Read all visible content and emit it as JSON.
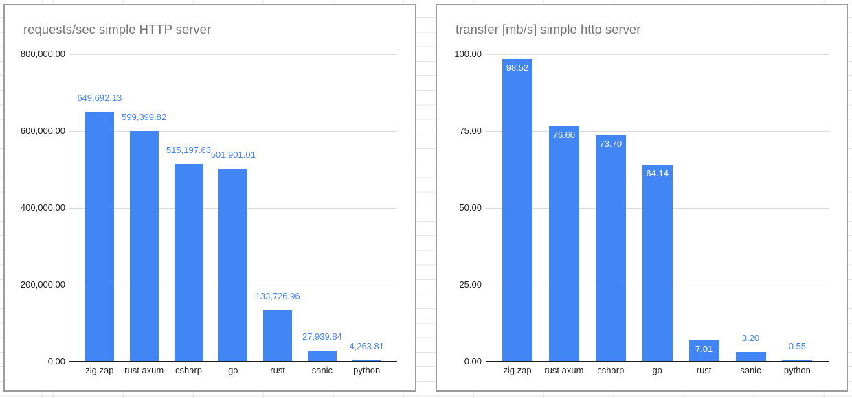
{
  "colors": {
    "bar": "#4285f4",
    "value_label_above": "#4285f4",
    "value_label_inside": "#ffffff",
    "chart_title": "#757575",
    "axis_label": "#1f1f1f",
    "chart_gridline": "#dadada",
    "axis_line": "#1c1c1c",
    "panel_border": "#9d9d9d",
    "sheet_gridline": "#e4e4e4"
  },
  "chart_data": [
    {
      "type": "bar",
      "title": "requests/sec simple HTTP server",
      "categories": [
        "zig zap",
        "rust axum",
        "csharp",
        "go",
        "rust",
        "sanic",
        "python"
      ],
      "values": [
        649692.13,
        599399.82,
        515197.63,
        501901.01,
        133726.96,
        27939.84,
        4263.81
      ],
      "value_labels": [
        "649,692.13",
        "599,399.82",
        "515,197.63",
        "501,901.01",
        "133,726.96",
        "27,939.84",
        "4,263.81"
      ],
      "label_placement": [
        "above",
        "above",
        "above",
        "above",
        "above",
        "above",
        "above"
      ],
      "y_tick_labels": [
        "800,000.00",
        "600,000.00",
        "400,000.00",
        "200,000.00",
        "0.00"
      ],
      "ylim": [
        0,
        800000
      ],
      "xlabel": "",
      "ylabel": "",
      "legend": "none",
      "grid": true
    },
    {
      "type": "bar",
      "title": "transfer [mb/s] simple http server",
      "categories": [
        "zig zap",
        "rust axum",
        "csharp",
        "go",
        "rust",
        "sanic",
        "python"
      ],
      "values": [
        98.52,
        76.6,
        73.7,
        64.14,
        7.01,
        3.2,
        0.55
      ],
      "value_labels": [
        "98.52",
        "76.60",
        "73.70",
        "64.14",
        "7.01",
        "3.20",
        "0.55"
      ],
      "label_placement": [
        "inside",
        "inside",
        "inside",
        "inside",
        "inside",
        "above",
        "above"
      ],
      "y_tick_labels": [
        "100.00",
        "75.00",
        "50.00",
        "25.00",
        "0.00"
      ],
      "ylim": [
        0,
        100
      ],
      "xlabel": "",
      "ylabel": "",
      "legend": "none",
      "grid": true
    }
  ]
}
